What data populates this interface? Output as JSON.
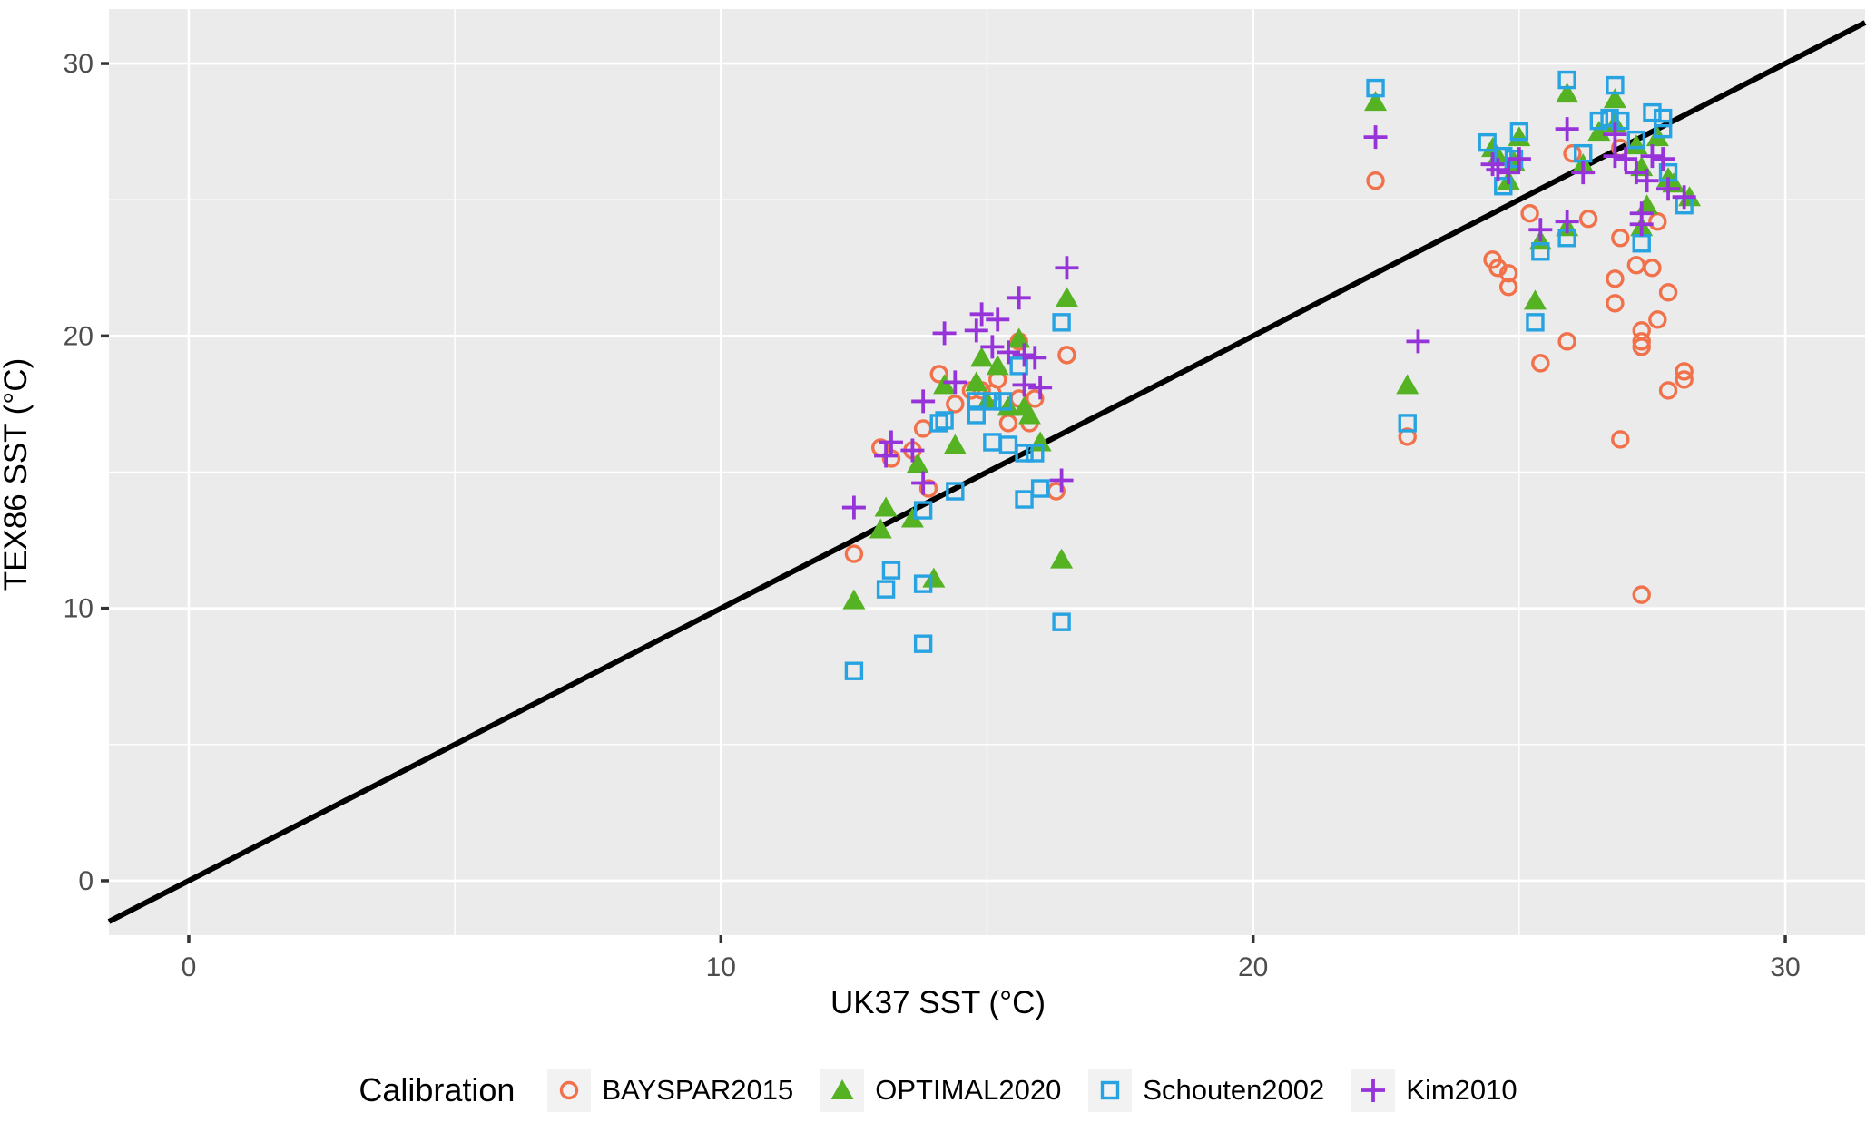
{
  "colors": {
    "page_bg": "#FFFFFF",
    "panel_bg": "#EBEBEB",
    "grid": "#FFFFFF",
    "identity_line": "#000000",
    "tick_label": "#4D4D4D",
    "tick_mark": "#333333",
    "legend_key_bg": "#F2F2F2"
  },
  "chart_data": {
    "type": "scatter",
    "title": "",
    "xlabel": "UK37 SST (°C)",
    "ylabel": "TEX86 SST (°C)",
    "xlim": [
      -1.5,
      31.5
    ],
    "ylim": [
      -2,
      32
    ],
    "x_ticks": [
      0,
      10,
      20,
      30
    ],
    "y_ticks": [
      0,
      10,
      20,
      30
    ],
    "x_minor_ticks": [
      5,
      15,
      25
    ],
    "y_minor_ticks": [
      5,
      15,
      25
    ],
    "grid": "white major+minor on gray panel",
    "legend_position": "bottom",
    "legend_title": "Calibration",
    "identity_line": {
      "slope": 1,
      "intercept": 0
    },
    "series": [
      {
        "name": "BAYSPAR2015",
        "marker": "open-circle",
        "color": "#F1714B",
        "points": [
          [
            12.5,
            12.0
          ],
          [
            13.0,
            15.9
          ],
          [
            13.2,
            15.5
          ],
          [
            13.6,
            15.8
          ],
          [
            13.8,
            16.6
          ],
          [
            13.9,
            14.4
          ],
          [
            14.1,
            18.6
          ],
          [
            14.4,
            17.5
          ],
          [
            14.7,
            18.0
          ],
          [
            14.9,
            18.0
          ],
          [
            15.1,
            17.9
          ],
          [
            15.2,
            18.4
          ],
          [
            15.4,
            16.8
          ],
          [
            15.6,
            19.8
          ],
          [
            15.6,
            17.7
          ],
          [
            15.8,
            16.8
          ],
          [
            15.9,
            17.7
          ],
          [
            16.3,
            14.3
          ],
          [
            16.5,
            19.3
          ],
          [
            22.3,
            25.7
          ],
          [
            22.9,
            16.3
          ],
          [
            24.5,
            22.8
          ],
          [
            24.6,
            22.5
          ],
          [
            24.8,
            22.3
          ],
          [
            24.8,
            21.8
          ],
          [
            25.2,
            24.5
          ],
          [
            25.4,
            19.0
          ],
          [
            25.9,
            19.8
          ],
          [
            26.0,
            26.7
          ],
          [
            26.3,
            24.3
          ],
          [
            26.8,
            22.1
          ],
          [
            26.8,
            21.2
          ],
          [
            26.9,
            26.9
          ],
          [
            26.9,
            23.6
          ],
          [
            26.9,
            16.2
          ],
          [
            27.2,
            22.6
          ],
          [
            27.3,
            20.2
          ],
          [
            27.3,
            19.8
          ],
          [
            27.3,
            19.6
          ],
          [
            27.3,
            10.5
          ],
          [
            27.5,
            22.5
          ],
          [
            27.6,
            24.2
          ],
          [
            27.6,
            20.6
          ],
          [
            27.8,
            21.6
          ],
          [
            27.8,
            18.0
          ],
          [
            28.1,
            18.4
          ],
          [
            28.1,
            18.7
          ]
        ]
      },
      {
        "name": "OPTIMAL2020",
        "marker": "filled-triangle",
        "color": "#55B323",
        "points": [
          [
            12.5,
            10.3
          ],
          [
            13.0,
            12.9
          ],
          [
            13.1,
            13.7
          ],
          [
            13.6,
            13.3
          ],
          [
            13.7,
            15.3
          ],
          [
            14.0,
            11.1
          ],
          [
            14.2,
            18.2
          ],
          [
            14.4,
            16.0
          ],
          [
            14.8,
            18.3
          ],
          [
            14.9,
            19.2
          ],
          [
            15.0,
            17.6
          ],
          [
            15.2,
            18.9
          ],
          [
            15.4,
            17.4
          ],
          [
            15.6,
            19.9
          ],
          [
            15.7,
            17.4
          ],
          [
            15.8,
            17.1
          ],
          [
            16.0,
            16.1
          ],
          [
            16.4,
            11.8
          ],
          [
            16.5,
            21.4
          ],
          [
            22.3,
            28.6
          ],
          [
            22.9,
            18.2
          ],
          [
            24.5,
            26.9
          ],
          [
            24.6,
            26.6
          ],
          [
            24.8,
            25.7
          ],
          [
            24.9,
            26.4
          ],
          [
            25.0,
            27.3
          ],
          [
            25.3,
            21.3
          ],
          [
            25.4,
            23.5
          ],
          [
            25.9,
            28.9
          ],
          [
            25.9,
            24.0
          ],
          [
            26.2,
            26.3
          ],
          [
            26.5,
            27.5
          ],
          [
            26.8,
            28.7
          ],
          [
            26.8,
            27.8
          ],
          [
            27.2,
            27.0
          ],
          [
            27.3,
            26.2
          ],
          [
            27.3,
            24.0
          ],
          [
            27.4,
            24.8
          ],
          [
            27.6,
            27.3
          ],
          [
            27.8,
            25.8
          ],
          [
            27.9,
            25.6
          ],
          [
            28.2,
            25.1
          ]
        ]
      },
      {
        "name": "Schouten2002",
        "marker": "open-square",
        "color": "#27A3E2",
        "points": [
          [
            12.5,
            7.7
          ],
          [
            13.1,
            10.7
          ],
          [
            13.2,
            11.4
          ],
          [
            13.8,
            13.6
          ],
          [
            13.8,
            10.9
          ],
          [
            13.8,
            8.7
          ],
          [
            14.1,
            16.8
          ],
          [
            14.2,
            16.9
          ],
          [
            14.4,
            14.3
          ],
          [
            14.8,
            17.6
          ],
          [
            14.8,
            17.1
          ],
          [
            15.1,
            17.6
          ],
          [
            15.1,
            16.1
          ],
          [
            15.3,
            17.6
          ],
          [
            15.4,
            16.0
          ],
          [
            15.6,
            18.9
          ],
          [
            15.7,
            15.7
          ],
          [
            15.7,
            14.0
          ],
          [
            15.9,
            15.7
          ],
          [
            16.0,
            14.4
          ],
          [
            16.4,
            20.5
          ],
          [
            16.4,
            9.5
          ],
          [
            22.3,
            29.1
          ],
          [
            22.9,
            16.8
          ],
          [
            24.4,
            27.1
          ],
          [
            24.7,
            26.6
          ],
          [
            24.7,
            25.5
          ],
          [
            24.9,
            26.5
          ],
          [
            25.0,
            27.5
          ],
          [
            25.3,
            20.5
          ],
          [
            25.4,
            23.1
          ],
          [
            25.9,
            29.4
          ],
          [
            25.9,
            23.6
          ],
          [
            26.2,
            26.7
          ],
          [
            26.5,
            27.9
          ],
          [
            26.7,
            28.0
          ],
          [
            26.8,
            29.2
          ],
          [
            26.9,
            27.9
          ],
          [
            27.2,
            27.2
          ],
          [
            27.3,
            23.4
          ],
          [
            27.5,
            28.2
          ],
          [
            27.7,
            28.0
          ],
          [
            27.7,
            27.6
          ],
          [
            27.8,
            26.0
          ],
          [
            28.1,
            24.8
          ]
        ]
      },
      {
        "name": "Kim2010",
        "marker": "plus",
        "color": "#9633D9",
        "points": [
          [
            12.5,
            13.7
          ],
          [
            13.1,
            15.6
          ],
          [
            13.2,
            16.1
          ],
          [
            13.6,
            15.8
          ],
          [
            13.8,
            17.6
          ],
          [
            13.8,
            14.6
          ],
          [
            14.2,
            20.1
          ],
          [
            14.4,
            18.3
          ],
          [
            14.8,
            20.2
          ],
          [
            14.9,
            20.8
          ],
          [
            15.1,
            19.6
          ],
          [
            15.2,
            20.6
          ],
          [
            15.4,
            19.4
          ],
          [
            15.6,
            21.4
          ],
          [
            15.7,
            19.3
          ],
          [
            15.7,
            18.2
          ],
          [
            15.9,
            19.2
          ],
          [
            16.0,
            18.1
          ],
          [
            16.4,
            14.7
          ],
          [
            16.5,
            22.5
          ],
          [
            22.3,
            27.3
          ],
          [
            23.1,
            19.8
          ],
          [
            24.5,
            26.3
          ],
          [
            24.6,
            26.1
          ],
          [
            24.8,
            26.0
          ],
          [
            25.0,
            26.5
          ],
          [
            25.4,
            23.9
          ],
          [
            25.9,
            27.6
          ],
          [
            25.9,
            24.2
          ],
          [
            26.2,
            26.0
          ],
          [
            26.8,
            27.4
          ],
          [
            26.8,
            26.6
          ],
          [
            27.0,
            26.5
          ],
          [
            27.2,
            26.0
          ],
          [
            27.3,
            24.5
          ],
          [
            27.3,
            24.1
          ],
          [
            27.4,
            25.7
          ],
          [
            27.5,
            26.6
          ],
          [
            27.7,
            26.5
          ],
          [
            27.8,
            25.4
          ],
          [
            28.1,
            25.1
          ]
        ]
      }
    ]
  }
}
